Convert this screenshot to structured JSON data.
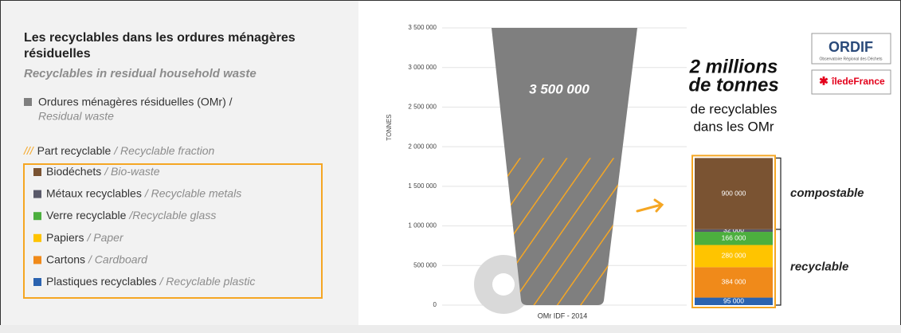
{
  "panel": {
    "title": "Les recyclables dans les ordures ménagères",
    "title_2": "résiduelles",
    "subtitle": "Recyclables in residual household waste"
  },
  "logos": {
    "ordif": "ORDIF",
    "ordif_sub": "Observatoire Régional des Déchets",
    "idf": "îledeFrance"
  },
  "chart_data": {
    "type": "bar",
    "ylabel": "TONNES",
    "categories": [
      "OMr IDF - 2014"
    ],
    "ylim": [
      0,
      3500000
    ],
    "yticks": [
      0,
      {
        "value": 500000,
        "label": "500 000"
      },
      {
        "value": 1000000,
        "label": "1 000 000"
      },
      {
        "value": 1500000,
        "label": "1 500 000"
      },
      {
        "value": 2000000,
        "label": "2 000 000"
      },
      {
        "value": 2500000,
        "label": "2 500 000"
      },
      {
        "value": 3000000,
        "label": "3 000 000"
      },
      {
        "value": 3500000,
        "label": "3 500 000"
      }
    ],
    "grid": true,
    "series": [
      {
        "name": "Ordures ménagères résiduelles (OMr) /",
        "name_en": "Residual waste",
        "color": "#7f7f7f",
        "values": [
          3500000
        ],
        "value_labels": [
          "3 500 000"
        ]
      },
      {
        "name": "Biodéchets",
        "name_en": "/ Bio-waste",
        "color": "#7a5332",
        "values": [
          900000
        ],
        "value_labels": [
          "900 000"
        ]
      },
      {
        "name": "Métaux recyclables",
        "name_en": "/ Recyclable metals",
        "color": "#5a5a6a",
        "values": [
          32000
        ],
        "value_labels": [
          "32 000"
        ]
      },
      {
        "name": "Verre recyclable",
        "name_en": "/Recyclable glass",
        "color": "#4caf3e",
        "values": [
          166000
        ],
        "value_labels": [
          "166 000"
        ]
      },
      {
        "name": "Papiers",
        "name_en": "/ Paper",
        "color": "#ffc400",
        "values": [
          280000
        ],
        "value_labels": [
          "280 000"
        ]
      },
      {
        "name": "Cartons",
        "name_en": "/ Cardboard",
        "color": "#f08a1a",
        "values": [
          384000
        ],
        "value_labels": [
          "384 000"
        ]
      },
      {
        "name": "Plastiques recyclables",
        "name_en": "/ Recyclable plastic",
        "color": "#2b63b0",
        "values": [
          95000
        ],
        "value_labels": [
          "95 000"
        ]
      }
    ],
    "recyclable_label": {
      "hatch": "///",
      "fr": "Part recyclable",
      "en": "/ Recyclable fraction",
      "color": "#f5a623"
    },
    "headline": [
      "2 millions",
      "de tonnes",
      "de recyclables",
      "dans les OMr"
    ],
    "brackets": [
      "compostable",
      "recyclable"
    ]
  }
}
